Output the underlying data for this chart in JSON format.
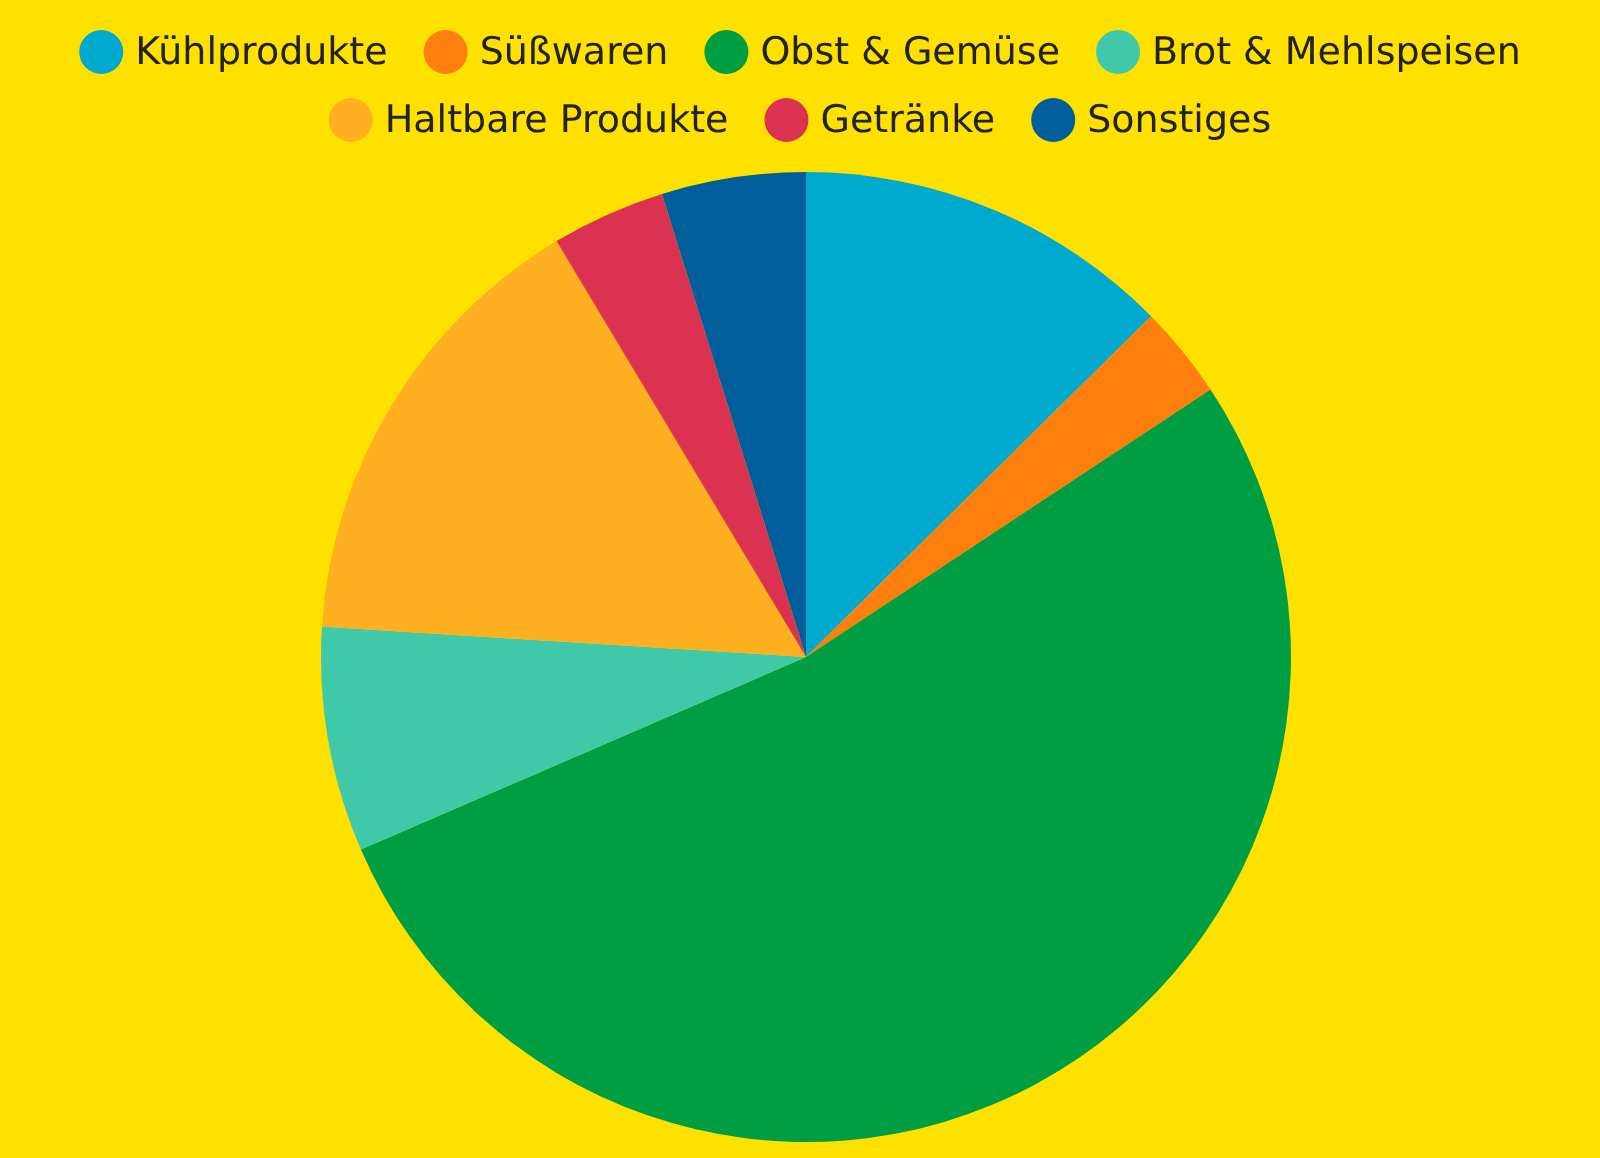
{
  "chart_data": {
    "type": "pie",
    "categories": [
      "Kühlprodukte",
      "Süßwaren",
      "Obst & Gemüse",
      "Brot & Mehlspeisen",
      "Haltbare Produkte",
      "Getränke",
      "Sonstiges"
    ],
    "values": [
      12.6,
      3.1,
      52.8,
      7.5,
      15.4,
      3.8,
      4.8
    ],
    "colors": [
      "#00a9ce",
      "#ff7f0e",
      "#009e42",
      "#40c9a9",
      "#ffb020",
      "#dc3251",
      "#005f9a"
    ],
    "legend": "top"
  }
}
